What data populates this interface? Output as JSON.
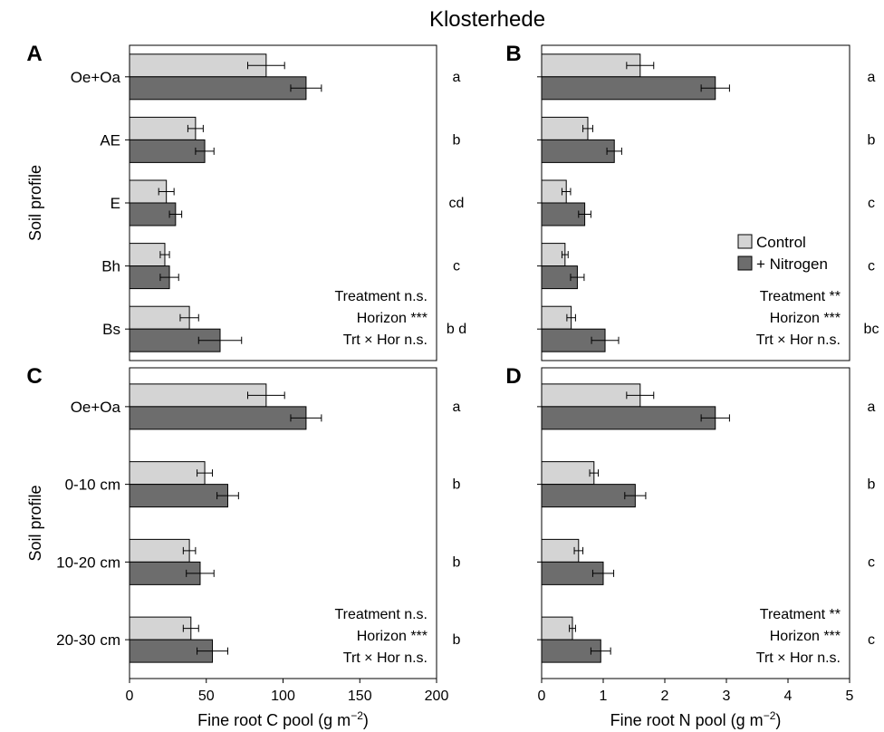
{
  "figure": {
    "title": "Klosterhede",
    "colors": {
      "control": "#d4d4d4",
      "nitrogen": "#6d6d6d",
      "stroke": "#000000"
    }
  },
  "chart_data": [
    {
      "panel": "A",
      "type": "bar",
      "orientation": "horizontal",
      "ylabel": "Soil profile",
      "xlabel": "",
      "xlim": [
        0,
        200
      ],
      "xticks": [],
      "categories": [
        "Oe+Oa",
        "AE",
        "E",
        "Bh",
        "Bs"
      ],
      "series": [
        {
          "name": "Control",
          "values": [
            89,
            43,
            24,
            23,
            39
          ],
          "errors": [
            12,
            5,
            5,
            3,
            6
          ]
        },
        {
          "name": "+ Nitrogen",
          "values": [
            115,
            49,
            30,
            26,
            59
          ],
          "errors": [
            10,
            6,
            4,
            6,
            14
          ]
        }
      ],
      "letters": [
        "a",
        "b",
        "cd",
        "c",
        "b d"
      ],
      "stats": [
        {
          "label": "Treatment",
          "sig": "n.s."
        },
        {
          "label": "Horizon",
          "sig": "***"
        },
        {
          "label": "Trt × Hor",
          "sig": "n.s."
        }
      ],
      "legend": []
    },
    {
      "panel": "B",
      "type": "bar",
      "orientation": "horizontal",
      "ylabel": "",
      "xlabel": "",
      "xlim": [
        0,
        5
      ],
      "xticks": [],
      "categories": [
        "",
        "",
        "",
        "",
        ""
      ],
      "series": [
        {
          "name": "Control",
          "values": [
            1.6,
            0.75,
            0.4,
            0.38,
            0.48
          ],
          "errors": [
            0.22,
            0.08,
            0.07,
            0.05,
            0.07
          ]
        },
        {
          "name": "+ Nitrogen",
          "values": [
            2.82,
            1.18,
            0.7,
            0.58,
            1.03
          ],
          "errors": [
            0.23,
            0.12,
            0.1,
            0.11,
            0.22
          ]
        }
      ],
      "letters": [
        "a",
        "b",
        "c",
        "c",
        "bc"
      ],
      "stats": [
        {
          "label": "Treatment",
          "sig": "**"
        },
        {
          "label": "Horizon",
          "sig": "***"
        },
        {
          "label": "Trt × Hor",
          "sig": "n.s."
        }
      ],
      "legend": [
        "Control",
        "+ Nitrogen"
      ],
      "legend_position": "right"
    },
    {
      "panel": "C",
      "type": "bar",
      "orientation": "horizontal",
      "ylabel": "Soil profile",
      "xlabel": "Fine root C pool (g m⁻²)",
      "xlim": [
        0,
        200
      ],
      "xticks": [
        0,
        50,
        100,
        150,
        200
      ],
      "categories": [
        "Oe+Oa",
        "0-10 cm",
        "10-20 cm",
        "20-30 cm"
      ],
      "series": [
        {
          "name": "Control",
          "values": [
            89,
            49,
            39,
            40
          ],
          "errors": [
            12,
            5,
            4,
            5
          ]
        },
        {
          "name": "+ Nitrogen",
          "values": [
            115,
            64,
            46,
            54
          ],
          "errors": [
            10,
            7,
            9,
            10
          ]
        }
      ],
      "letters": [
        "a",
        "b",
        "b",
        "b"
      ],
      "stats": [
        {
          "label": "Treatment",
          "sig": "n.s."
        },
        {
          "label": "Horizon",
          "sig": "***"
        },
        {
          "label": "Trt × Hor",
          "sig": "n.s."
        }
      ],
      "legend": []
    },
    {
      "panel": "D",
      "type": "bar",
      "orientation": "horizontal",
      "ylabel": "",
      "xlabel": "Fine root N pool (g m⁻²)",
      "xlim": [
        0,
        5
      ],
      "xticks": [
        0,
        1,
        2,
        3,
        4,
        5
      ],
      "categories": [
        "",
        "",
        "",
        ""
      ],
      "series": [
        {
          "name": "Control",
          "values": [
            1.6,
            0.85,
            0.6,
            0.5
          ],
          "errors": [
            0.22,
            0.07,
            0.07,
            0.05
          ]
        },
        {
          "name": "+ Nitrogen",
          "values": [
            2.82,
            1.52,
            1.0,
            0.96
          ],
          "errors": [
            0.23,
            0.17,
            0.17,
            0.16
          ]
        }
      ],
      "letters": [
        "a",
        "b",
        "c",
        "c"
      ],
      "stats": [
        {
          "label": "Treatment",
          "sig": "**"
        },
        {
          "label": "Horizon",
          "sig": "***"
        },
        {
          "label": "Trt × Hor",
          "sig": "n.s."
        }
      ],
      "legend": []
    }
  ]
}
